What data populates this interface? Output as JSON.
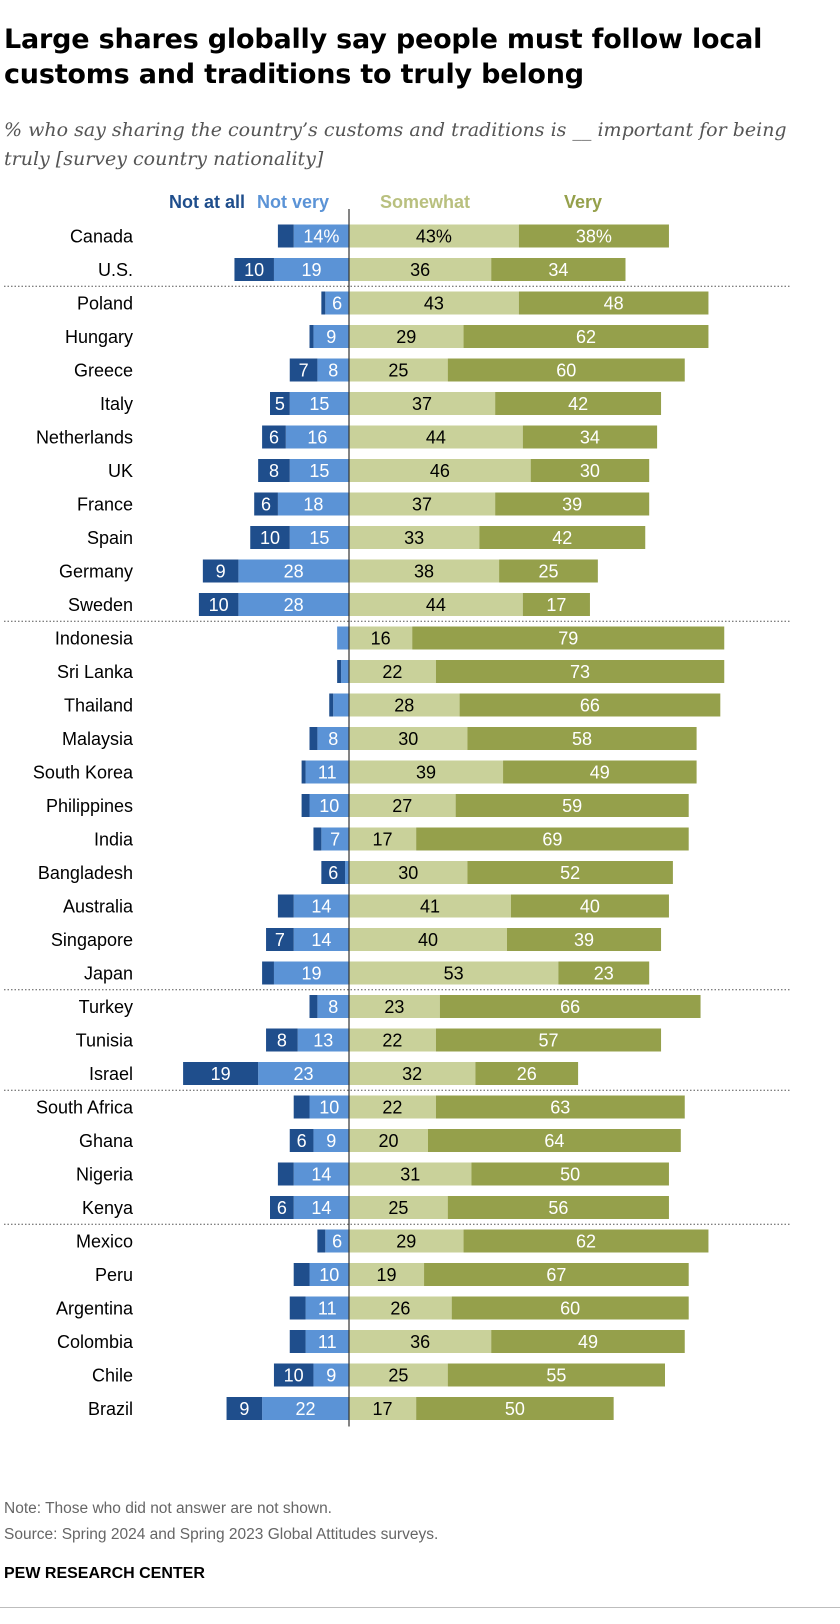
{
  "title": "Large shares globally say people must follow local customs and traditions to truly belong",
  "subtitle": "% who say sharing the country’s customs and traditions is __ important for being truly [survey country nationality]",
  "note": "Note: Those who did not answer are not shown.",
  "source": "Source: Spring 2024 and Spring 2023 Global Attitudes surveys.",
  "org": "PEW RESEARCH CENTER",
  "colors": {
    "not_at_all": "#1f4e8c",
    "not_very": "#5b93d6",
    "somewhat": "#c9d19a",
    "very": "#95a04b"
  },
  "chart_data": {
    "type": "bar",
    "orientation": "horizontal",
    "stacked": "diverging",
    "legend_position": "top",
    "series": [
      {
        "name": "Not at all",
        "values": [
          4,
          10,
          1,
          1,
          7,
          5,
          6,
          8,
          6,
          10,
          9,
          10,
          0,
          1,
          1,
          2,
          1,
          2,
          2,
          6,
          4,
          7,
          3,
          2,
          8,
          19,
          4,
          6,
          4,
          6,
          2,
          4,
          4,
          4,
          10,
          9
        ]
      },
      {
        "name": "Not very",
        "values": [
          14,
          19,
          6,
          9,
          8,
          15,
          16,
          15,
          18,
          15,
          28,
          28,
          3,
          2,
          4,
          8,
          11,
          10,
          7,
          1,
          14,
          14,
          19,
          8,
          13,
          23,
          10,
          9,
          14,
          14,
          6,
          10,
          11,
          11,
          9,
          22
        ]
      },
      {
        "name": "Somewhat",
        "values": [
          43,
          36,
          43,
          29,
          25,
          37,
          44,
          46,
          37,
          33,
          38,
          44,
          16,
          22,
          28,
          30,
          39,
          27,
          17,
          30,
          41,
          40,
          53,
          23,
          22,
          32,
          22,
          20,
          31,
          25,
          29,
          19,
          26,
          36,
          25,
          17
        ]
      },
      {
        "name": "Very",
        "values": [
          38,
          34,
          48,
          62,
          60,
          42,
          34,
          30,
          39,
          42,
          25,
          17,
          79,
          73,
          66,
          58,
          49,
          59,
          69,
          52,
          40,
          39,
          23,
          66,
          57,
          26,
          63,
          64,
          50,
          56,
          62,
          67,
          60,
          49,
          55,
          50
        ]
      }
    ],
    "value_labels": {
      "not_at_all": [
        "",
        "10",
        "",
        "",
        "7",
        "5",
        "6",
        "8",
        "6",
        "10",
        "9",
        "10",
        "",
        "",
        "",
        "",
        "",
        "",
        "",
        "6",
        "",
        "7",
        "",
        "",
        "8",
        "19",
        "",
        "6",
        "",
        "6",
        "",
        "",
        "",
        "",
        "10",
        "9"
      ],
      "not_very": [
        "14%",
        "19",
        "6",
        "9",
        "8",
        "15",
        "16",
        "15",
        "18",
        "15",
        "28",
        "28",
        "",
        "",
        "",
        "8",
        "11",
        "10",
        "7",
        "",
        "14",
        "14",
        "19",
        "8",
        "13",
        "23",
        "10",
        "9",
        "14",
        "14",
        "6",
        "10",
        "11",
        "11",
        "9",
        "22"
      ],
      "somewhat": [
        "43%",
        "36",
        "43",
        "29",
        "25",
        "37",
        "44",
        "46",
        "37",
        "33",
        "38",
        "44",
        "16",
        "22",
        "28",
        "30",
        "39",
        "27",
        "17",
        "30",
        "41",
        "40",
        "53",
        "23",
        "22",
        "32",
        "22",
        "20",
        "31",
        "25",
        "29",
        "19",
        "26",
        "36",
        "25",
        "17"
      ],
      "very": [
        "38%",
        "34",
        "48",
        "62",
        "60",
        "42",
        "34",
        "30",
        "39",
        "42",
        "25",
        "17",
        "79",
        "73",
        "66",
        "58",
        "49",
        "59",
        "69",
        "52",
        "40",
        "39",
        "23",
        "66",
        "57",
        "26",
        "63",
        "64",
        "50",
        "56",
        "62",
        "67",
        "60",
        "49",
        "55",
        "50"
      ]
    },
    "categories": [
      "Canada",
      "U.S.",
      "Poland",
      "Hungary",
      "Greece",
      "Italy",
      "Netherlands",
      "UK",
      "France",
      "Spain",
      "Germany",
      "Sweden",
      "Indonesia",
      "Sri Lanka",
      "Thailand",
      "Malaysia",
      "South Korea",
      "Philippines",
      "India",
      "Bangladesh",
      "Australia",
      "Singapore",
      "Japan",
      "Turkey",
      "Tunisia",
      "Israel",
      "South Africa",
      "Ghana",
      "Nigeria",
      "Kenya",
      "Mexico",
      "Peru",
      "Argentina",
      "Colombia",
      "Chile",
      "Brazil"
    ],
    "group_breaks_after": [
      1,
      11,
      22,
      25,
      29
    ]
  }
}
